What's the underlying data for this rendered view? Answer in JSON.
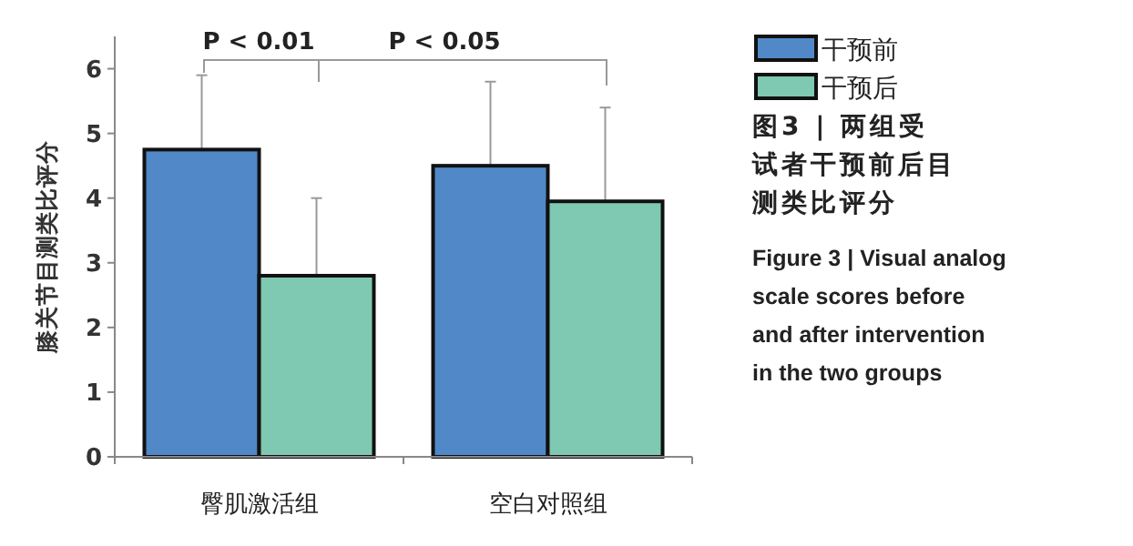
{
  "chart_data": {
    "type": "bar",
    "ylabel": "膝关节目测类比评分",
    "categories": [
      "臀肌激活组",
      "空白对照组"
    ],
    "series": [
      {
        "name": "干预前",
        "color": "#5188c8",
        "values": [
          4.75,
          4.5
        ],
        "errors": [
          1.15,
          1.3
        ]
      },
      {
        "name": "干预后",
        "color": "#7fc8b2",
        "values": [
          2.8,
          3.95
        ],
        "errors": [
          1.2,
          1.45
        ]
      }
    ],
    "ylim": [
      0,
      6.5
    ],
    "yticks": [
      0,
      1,
      2,
      3,
      4,
      5,
      6
    ],
    "legend": "top right",
    "grid": false,
    "annotations": [
      "P < 0.01",
      "P < 0.05",
      "图3 | 两组受试者干预前后目测类比评分",
      "Figure 3  |  Visual analog scale scores before and after intervention in the two groups"
    ]
  }
}
